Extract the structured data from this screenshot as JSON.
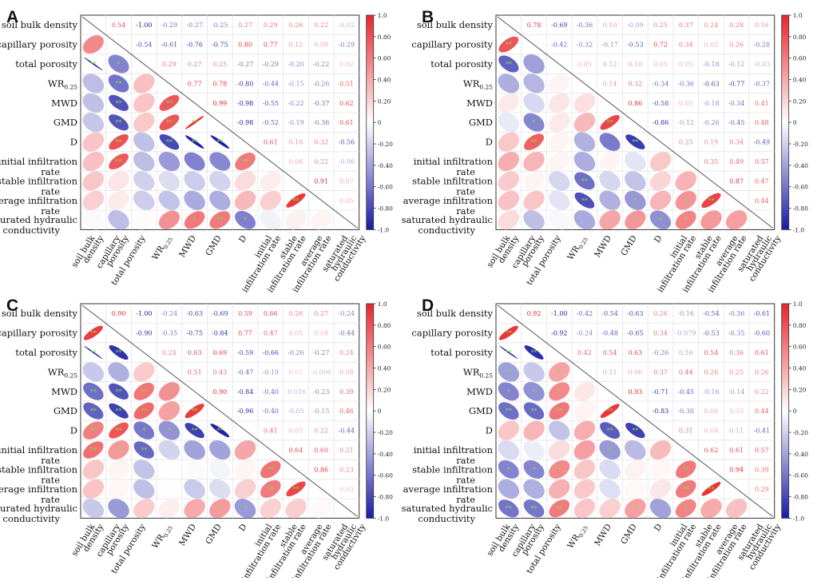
{
  "figure": {
    "panels": [
      "A",
      "B",
      "C",
      "D"
    ],
    "colorbar_ticks": [
      "1.0",
      "0.80",
      "0.60",
      "0.40",
      "0.20",
      "0",
      "-0.20",
      "-0.40",
      "-0.60",
      "-0.80",
      "-1.0"
    ],
    "colors": {
      "positive": "#e8252b",
      "negative": "#1a1aa6",
      "neutral": "#ffffff",
      "star": "#7fe33a"
    }
  },
  "chart_data": [
    {
      "panel": "A",
      "type": "heatmap",
      "title": "",
      "variables": [
        "soil bulk density",
        "capillary porosity",
        "total porosity",
        "WR0.25",
        "MWD",
        "GMD",
        "D",
        "initial infiltration rate",
        "stable infiltration rate",
        "average infiltration rate",
        "saturated hydraulic conductivity"
      ],
      "row_labels": [
        [
          "soil bulk density"
        ],
        [
          "capillary porosity"
        ],
        [
          "total porosity"
        ],
        [
          "WR0.25"
        ],
        [
          "MWD"
        ],
        [
          "GMD"
        ],
        [
          "D"
        ],
        [
          "initial infiltration",
          "rate"
        ],
        [
          "stable infiltration",
          "rate"
        ],
        [
          "average infiltration",
          "rate"
        ],
        [
          "saturated hydraulic",
          "conductivity"
        ]
      ],
      "col_labels": [
        [
          "soil bulk",
          "density"
        ],
        [
          "capillary",
          "porosity"
        ],
        [
          "total porosity"
        ],
        [
          "WR0.25"
        ],
        [
          "MWD"
        ],
        [
          "GMD"
        ],
        [
          "D"
        ],
        [
          "initial",
          "infiltration rate"
        ],
        [
          "stable",
          "infiltration rate"
        ],
        [
          "average",
          "infiltration rate"
        ],
        [
          "saturated",
          "hydraulic",
          "conductivity"
        ]
      ],
      "colorbar_range": [
        -1.0,
        1.0
      ],
      "correlations": [
        [
          1.0,
          0.54,
          -1.0,
          -0.29,
          -0.27,
          -0.25,
          0.27,
          0.29,
          0.26,
          0.22,
          -0.02
        ],
        [
          0.54,
          1.0,
          -0.54,
          -0.61,
          -0.76,
          -0.75,
          0.8,
          0.77,
          0.12,
          0.09,
          -0.29
        ],
        [
          -1.0,
          -0.54,
          1.0,
          0.29,
          0.27,
          0.25,
          -0.27,
          -0.29,
          -0.2,
          -0.22,
          0.02
        ],
        [
          -0.29,
          -0.61,
          0.29,
          1.0,
          0.77,
          0.78,
          -0.8,
          -0.44,
          -0.15,
          -0.26,
          0.51
        ],
        [
          -0.27,
          -0.76,
          0.27,
          0.77,
          1.0,
          0.99,
          -0.98,
          -0.55,
          -0.22,
          -0.37,
          0.62
        ],
        [
          -0.25,
          -0.75,
          0.25,
          0.78,
          0.99,
          1.0,
          -0.98,
          -0.52,
          -0.19,
          -0.36,
          0.61
        ],
        [
          0.27,
          0.8,
          -0.27,
          -0.8,
          -0.98,
          -0.98,
          1.0,
          0.61,
          0.16,
          0.32,
          -0.56
        ],
        [
          0.29,
          0.77,
          -0.29,
          -0.44,
          -0.55,
          -0.52,
          0.61,
          1.0,
          0.08,
          0.22,
          -0.06
        ],
        [
          0.26,
          0.12,
          -0.2,
          -0.15,
          -0.22,
          -0.19,
          0.16,
          0.08,
          1.0,
          0.91,
          0.07
        ],
        [
          0.22,
          0.09,
          -0.22,
          -0.26,
          -0.37,
          -0.36,
          0.32,
          0.22,
          0.91,
          1.0,
          0.05
        ],
        [
          -0.02,
          -0.29,
          0.02,
          0.51,
          0.62,
          0.61,
          -0.56,
          -0.06,
          0.07,
          0.05,
          1.0
        ]
      ],
      "significance": {
        "1-0": "",
        "2-0": "**",
        "2-1": "*",
        "3-1": "**",
        "4-1": "**",
        "4-3": "**",
        "5-1": "**",
        "5-3": "**",
        "5-4": "**",
        "6-1": "**",
        "6-3": "**",
        "6-4": "**",
        "6-5": "**",
        "7-1": "**",
        "7-6": "**",
        "8-0": "",
        "9-8": "**",
        "10-3": "*",
        "10-4": "*",
        "10-5": "**",
        "10-6": "*"
      }
    },
    {
      "panel": "B",
      "type": "heatmap",
      "title": "",
      "variables": [
        "soil bulk density",
        "capillary porosity",
        "total porosity",
        "WR0.25",
        "MWD",
        "GMD",
        "D",
        "initial infiltration rate",
        "stable infiltration rate",
        "average infiltration rate",
        "saturated hydraulic conductivity"
      ],
      "row_labels": [
        [
          "soil bulk density"
        ],
        [
          "capillary porosity"
        ],
        [
          "total porosity"
        ],
        [
          "WR0.25"
        ],
        [
          "MWD"
        ],
        [
          "GMD"
        ],
        [
          "D"
        ],
        [
          "initial infiltration",
          "rate"
        ],
        [
          "stable infiltration",
          "rate"
        ],
        [
          "average infiltration",
          "rate"
        ],
        [
          "saturated hydraulic",
          "conductivity"
        ]
      ],
      "col_labels": [
        [
          "soil bulk",
          "density"
        ],
        [
          "capillary",
          "porosity"
        ],
        [
          "total porosity"
        ],
        [
          "WR0.25"
        ],
        [
          "MWD"
        ],
        [
          "GMD"
        ],
        [
          "D"
        ],
        [
          "initial",
          "infiltration rate"
        ],
        [
          "stable",
          "infiltration rate"
        ],
        [
          "average",
          "infiltration rate"
        ],
        [
          "saturated",
          "hydraulic",
          "conductivity"
        ]
      ],
      "colorbar_range": [
        -1.0,
        1.0
      ],
      "correlations": [
        [
          1.0,
          0.78,
          -0.69,
          -0.36,
          0.1,
          -0.09,
          0.25,
          0.37,
          0.24,
          0.28,
          0.16
        ],
        [
          0.78,
          1.0,
          -0.42,
          -0.32,
          -0.17,
          -0.53,
          0.72,
          0.34,
          0.05,
          0.26,
          -0.28
        ],
        [
          -0.69,
          -0.42,
          1.0,
          0.05,
          0.12,
          0.1,
          0.05,
          0.05,
          -0.18,
          -0.12,
          -0.03
        ],
        [
          -0.36,
          -0.32,
          0.05,
          1.0,
          0.14,
          0.32,
          -0.34,
          -0.36,
          -0.63,
          -0.77,
          -0.37
        ],
        [
          0.1,
          -0.17,
          0.12,
          0.14,
          1.0,
          0.86,
          -0.58,
          0.05,
          -0.18,
          -0.34,
          0.41
        ],
        [
          -0.09,
          -0.53,
          0.1,
          0.32,
          0.86,
          1.0,
          -0.86,
          -0.12,
          -0.26,
          -0.45,
          0.48
        ],
        [
          0.25,
          0.72,
          0.05,
          -0.34,
          -0.58,
          -0.86,
          1.0,
          0.25,
          0.19,
          0.34,
          -0.49
        ],
        [
          0.37,
          0.34,
          0.05,
          -0.36,
          0.05,
          -0.12,
          0.25,
          1.0,
          0.35,
          0.49,
          0.57
        ],
        [
          0.24,
          0.05,
          -0.18,
          -0.63,
          -0.18,
          -0.26,
          0.19,
          0.35,
          1.0,
          0.87,
          0.47
        ],
        [
          0.28,
          0.26,
          -0.12,
          -0.77,
          -0.34,
          -0.45,
          0.34,
          0.49,
          0.87,
          1.0,
          0.44
        ],
        [
          0.16,
          -0.28,
          -0.03,
          -0.37,
          0.41,
          0.48,
          -0.49,
          0.57,
          0.47,
          0.44,
          1.0
        ]
      ],
      "significance": {
        "1-0": "**",
        "2-0": "**",
        "5-1": "*",
        "5-4": "**",
        "6-1": "**",
        "6-5": "**",
        "8-3": "**",
        "9-3": "**",
        "9-5": "*",
        "9-7": "*",
        "9-8": "**",
        "10-5": "*",
        "10-6": "*",
        "10-7": "*"
      }
    },
    {
      "panel": "C",
      "type": "heatmap",
      "title": "",
      "variables": [
        "soil bulk density",
        "capillary porosity",
        "total porosity",
        "WR0.25",
        "MWD",
        "GMD",
        "D",
        "initial infiltration rate",
        "stable infiltration rate",
        "average infiltration rate",
        "saturated hydraulic conductivity"
      ],
      "row_labels": [
        [
          "soil bulk density"
        ],
        [
          "capillary porosity"
        ],
        [
          "total porosity"
        ],
        [
          "WR0.25"
        ],
        [
          "MWD"
        ],
        [
          "GMD"
        ],
        [
          "D"
        ],
        [
          "initial infiltration",
          "rate"
        ],
        [
          "stable infiltration",
          "rate"
        ],
        [
          "average infiltration",
          "rate"
        ],
        [
          "saturated hydraulic",
          "conductivity"
        ]
      ],
      "col_labels": [
        [
          "soil bulk",
          "density"
        ],
        [
          "capillary",
          "porosity"
        ],
        [
          "total porosity"
        ],
        [
          "WR0.25"
        ],
        [
          "MWD"
        ],
        [
          "GMD"
        ],
        [
          "D"
        ],
        [
          "initial",
          "infiltration rate"
        ],
        [
          "stable",
          "infiltration rate"
        ],
        [
          "average",
          "infiltration rate"
        ],
        [
          "saturated",
          "hydraulic",
          "conductivity"
        ]
      ],
      "colorbar_range": [
        -1.0,
        1.0
      ],
      "correlations": [
        [
          1.0,
          0.9,
          -1.0,
          -0.24,
          -0.63,
          -0.69,
          0.59,
          0.66,
          0.26,
          0.27,
          -0.24
        ],
        [
          0.9,
          1.0,
          -0.9,
          -0.35,
          -0.75,
          -0.84,
          0.77,
          0.47,
          0.05,
          0.04,
          -0.44
        ],
        [
          -1.0,
          -0.9,
          1.0,
          0.24,
          0.63,
          0.69,
          -0.59,
          -0.66,
          -0.26,
          -0.27,
          0.24
        ],
        [
          -0.24,
          -0.35,
          0.24,
          1.0,
          0.51,
          0.43,
          -0.47,
          -0.19,
          0.01,
          -0.006,
          0.08
        ],
        [
          -0.63,
          -0.75,
          0.63,
          0.51,
          1.0,
          0.9,
          -0.84,
          -0.4,
          -0.016,
          -0.23,
          0.39
        ],
        [
          -0.69,
          -0.84,
          0.69,
          0.43,
          0.9,
          1.0,
          -0.96,
          -0.4,
          -0.05,
          -0.15,
          0.46
        ],
        [
          0.59,
          0.77,
          -0.59,
          -0.47,
          -0.84,
          -0.96,
          1.0,
          0.41,
          0.05,
          0.22,
          -0.44
        ],
        [
          0.66,
          0.47,
          -0.66,
          -0.19,
          -0.4,
          -0.4,
          0.41,
          1.0,
          0.64,
          0.6,
          0.21
        ],
        [
          0.26,
          0.05,
          -0.26,
          0.01,
          -0.016,
          -0.05,
          0.05,
          0.64,
          1.0,
          0.86,
          0.23
        ],
        [
          0.27,
          0.04,
          -0.27,
          -0.006,
          -0.23,
          -0.15,
          0.22,
          0.6,
          0.86,
          1.0,
          0.03
        ],
        [
          -0.24,
          -0.44,
          0.24,
          0.08,
          0.39,
          0.46,
          -0.44,
          0.21,
          0.23,
          0.03,
          1.0
        ]
      ],
      "significance": {
        "1-0": "**",
        "2-0": "**",
        "2-1": "**",
        "4-0": "**",
        "4-1": "**",
        "4-2": "**",
        "4-3": "*",
        "5-0": "**",
        "5-1": "**",
        "5-2": "**",
        "5-4": "**",
        "6-0": "**",
        "6-1": "**",
        "6-2": "*",
        "6-3": "*",
        "6-4": "**",
        "6-5": "**",
        "7-0": "**",
        "7-1": "*",
        "7-2": "**",
        "8-7": "**",
        "9-7": "**",
        "9-8": "**",
        "10-5": "*",
        "10-6": "*"
      }
    },
    {
      "panel": "D",
      "type": "heatmap",
      "title": "",
      "variables": [
        "soil bulk density",
        "capillary porosity",
        "total porosity",
        "WR0.25",
        "MWD",
        "GMD",
        "D",
        "initial infiltration rate",
        "stable infiltration rate",
        "average infiltration rate",
        "saturated hydraulic conductivity"
      ],
      "row_labels": [
        [
          "soil bulk density"
        ],
        [
          "capillary porosity"
        ],
        [
          "total porosity"
        ],
        [
          "WR0.25"
        ],
        [
          "MWD"
        ],
        [
          "GMD"
        ],
        [
          "D"
        ],
        [
          "initial infiltration",
          "rate"
        ],
        [
          "stable infiltration",
          "rate"
        ],
        [
          "average infiltration",
          "rate"
        ],
        [
          "saturated hydraulic",
          "conductivity"
        ]
      ],
      "col_labels": [
        [
          "soil bulk",
          "density"
        ],
        [
          "capillary",
          "porosity"
        ],
        [
          "total porosity"
        ],
        [
          "WR0.25"
        ],
        [
          "MWD"
        ],
        [
          "GMD"
        ],
        [
          "D"
        ],
        [
          "initial",
          "infiltration rate"
        ],
        [
          "stable",
          "infiltration rate"
        ],
        [
          "average",
          "infiltration rate"
        ],
        [
          "saturated",
          "hydraulic",
          "conductivity"
        ]
      ],
      "colorbar_range": [
        -1.0,
        1.0
      ],
      "correlations": [
        [
          1.0,
          0.92,
          -1.0,
          -0.42,
          -0.54,
          -0.63,
          0.26,
          -0.16,
          -0.54,
          -0.36,
          -0.61
        ],
        [
          0.92,
          1.0,
          -0.92,
          -0.24,
          -0.48,
          -0.65,
          0.34,
          -0.079,
          -0.53,
          -0.35,
          -0.6
        ],
        [
          -1.0,
          -0.92,
          1.0,
          0.42,
          0.54,
          0.63,
          -0.26,
          0.16,
          0.54,
          0.36,
          0.61
        ],
        [
          -0.42,
          -0.24,
          0.42,
          1.0,
          0.11,
          0.06,
          0.37,
          0.44,
          0.26,
          0.25,
          0.26
        ],
        [
          -0.54,
          -0.48,
          0.54,
          0.11,
          1.0,
          0.93,
          -0.71,
          -0.45,
          -0.16,
          -0.14,
          0.22
        ],
        [
          -0.63,
          -0.65,
          0.63,
          0.06,
          0.93,
          1.0,
          -0.83,
          -0.3,
          0.06,
          0.03,
          0.44
        ],
        [
          0.26,
          0.34,
          -0.26,
          0.37,
          -0.71,
          -0.83,
          1.0,
          0.31,
          0.04,
          0.11,
          -0.41
        ],
        [
          -0.16,
          -0.079,
          0.16,
          0.44,
          -0.45,
          -0.3,
          0.31,
          1.0,
          0.62,
          0.61,
          0.57
        ],
        [
          -0.54,
          -0.53,
          0.54,
          0.26,
          -0.16,
          0.06,
          0.04,
          0.62,
          1.0,
          0.94,
          0.39
        ],
        [
          -0.36,
          -0.35,
          0.36,
          0.25,
          -0.14,
          0.03,
          0.11,
          0.61,
          0.94,
          1.0,
          0.29
        ],
        [
          -0.61,
          -0.6,
          0.61,
          0.26,
          0.22,
          0.44,
          -0.41,
          0.57,
          0.39,
          0.29,
          1.0
        ]
      ],
      "significance": {
        "1-0": "**",
        "2-0": "**",
        "2-1": "**",
        "3-0": "*",
        "3-2": "*",
        "4-0": "*",
        "4-1": "*",
        "4-2": "*",
        "5-0": "**",
        "5-1": "**",
        "5-2": "**",
        "5-4": "**",
        "6-4": "**",
        "6-5": "**",
        "7-4": "*",
        "8-0": "*",
        "8-1": "*",
        "8-2": "*",
        "8-7": "**",
        "9-7": "**",
        "9-8": "**",
        "10-0": "**",
        "10-1": "**",
        "10-2": "**",
        "10-5": "*",
        "10-7": "*"
      }
    }
  ]
}
